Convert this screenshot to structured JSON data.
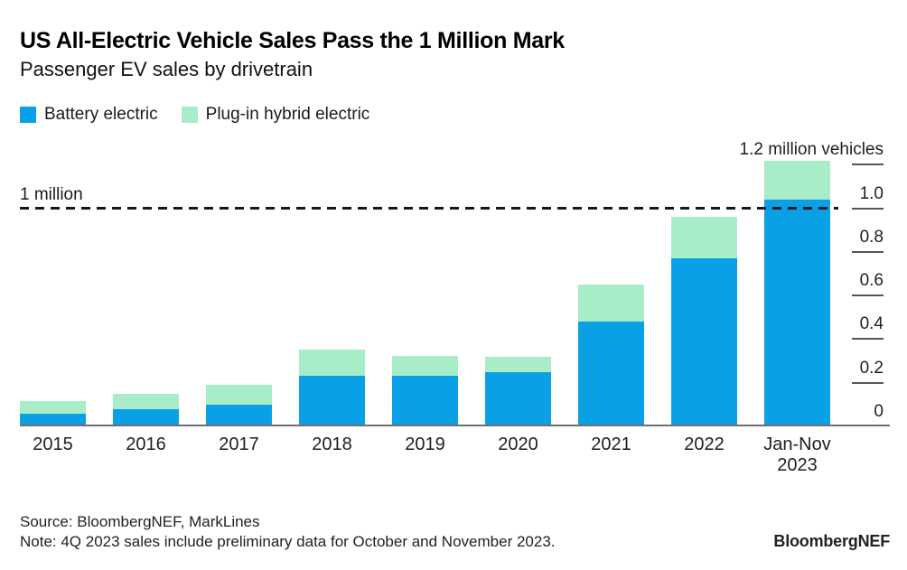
{
  "header": {
    "title": "US All-Electric Vehicle Sales Pass the 1 Million Mark",
    "subtitle": "Passenger EV sales by drivetrain"
  },
  "legend": [
    {
      "label": "Battery electric",
      "color": "#0AA0E6"
    },
    {
      "label": "Plug-in hybrid electric",
      "color": "#A8EDC8"
    }
  ],
  "chart_data": {
    "type": "bar",
    "stacked": true,
    "title": "US All-Electric Vehicle Sales Pass the 1 Million Mark",
    "subtitle": "Passenger EV sales by drivetrain",
    "unit": "million vehicles",
    "categories": [
      "2015",
      "2016",
      "2017",
      "2018",
      "2019",
      "2020",
      "2021",
      "2022",
      "Jan-Nov 2023"
    ],
    "series": [
      {
        "name": "Battery electric",
        "color": "#0AA0E6",
        "values": [
          0.06,
          0.08,
          0.1,
          0.23,
          0.23,
          0.25,
          0.48,
          0.77,
          1.04
        ]
      },
      {
        "name": "Plug-in hybrid electric",
        "color": "#A8EDC8",
        "values": [
          0.06,
          0.07,
          0.09,
          0.12,
          0.09,
          0.07,
          0.17,
          0.19,
          0.18
        ]
      }
    ],
    "ylim": [
      0,
      1.25
    ],
    "yticks": [
      {
        "value": 1.2,
        "label": "1.2 million vehicles"
      },
      {
        "value": 1.0,
        "label": "1.0"
      },
      {
        "value": 0.8,
        "label": "0.8"
      },
      {
        "value": 0.6,
        "label": "0.6"
      },
      {
        "value": 0.4,
        "label": "0.4"
      },
      {
        "value": 0.2,
        "label": "0.2"
      },
      {
        "value": 0,
        "label": "0"
      }
    ],
    "reference_line": {
      "value": 1.0,
      "label": "1 million"
    },
    "axis_side": "right",
    "grid": false,
    "legend_position": "top-left"
  },
  "footer": {
    "source": "Source: BloombergNEF, MarkLines",
    "note": "Note: 4Q 2023 sales include preliminary data for October and November 2023.",
    "brand": "BloombergNEF"
  }
}
